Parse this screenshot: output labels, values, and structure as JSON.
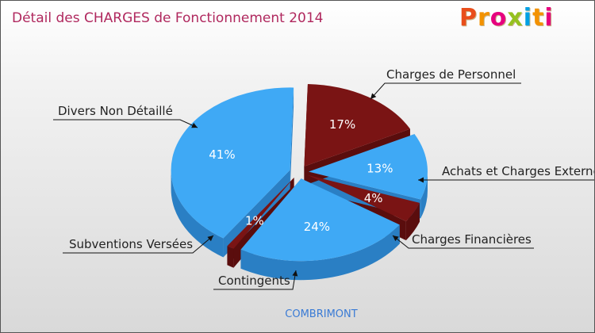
{
  "title": "Détail des CHARGES de Fonctionnement 2014",
  "logo": {
    "text": "Proxiti",
    "letter_colors": [
      "#e94e1b",
      "#f39200",
      "#e6007e",
      "#95c11f",
      "#00a0e3",
      "#f39200",
      "#e6007e"
    ]
  },
  "commune": "COMBRIMONT",
  "colors": {
    "blue": "#3fa9f5",
    "blue_side": "#2a7fc4",
    "red": "#7a1414",
    "red_side": "#5a0d0d",
    "title": "#b0285e"
  },
  "chart_data": {
    "type": "pie",
    "title": "Détail des CHARGES de Fonctionnement 2014",
    "slices": [
      {
        "label": "Charges de Personnel",
        "value": 17,
        "pct_label": "17%",
        "color": "#7a1414"
      },
      {
        "label": "Achats et Charges Externes",
        "value": 13,
        "pct_label": "13%",
        "color": "#3fa9f5"
      },
      {
        "label": "Charges Financières",
        "value": 4,
        "pct_label": "4%",
        "color": "#7a1414"
      },
      {
        "label": "Contingents",
        "value": 24,
        "pct_label": "24%",
        "color": "#3fa9f5"
      },
      {
        "label": "Subventions Versées",
        "value": 1,
        "pct_label": "1%",
        "color": "#7a1414"
      },
      {
        "label": "Divers Non Détaillé",
        "value": 41,
        "pct_label": "41%",
        "color": "#3fa9f5"
      }
    ]
  }
}
